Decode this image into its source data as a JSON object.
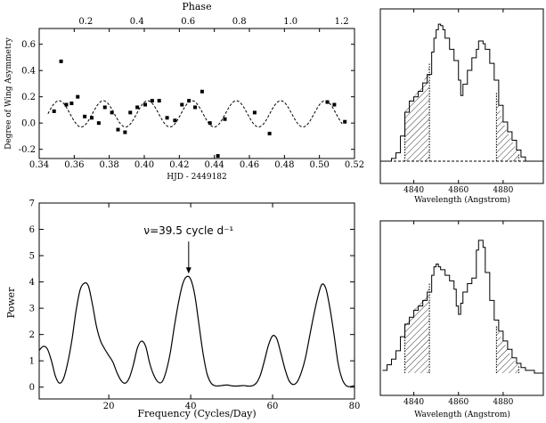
{
  "chart_data": [
    {
      "id": "asymmetry",
      "type": "scatter",
      "xlabel": "HJD - 2449182",
      "ylabel": "Degree of Wing Asymmetry",
      "top_xlabel": "Phase",
      "xlim": [
        0.34,
        0.52
      ],
      "ylim": [
        -0.27,
        0.72
      ],
      "phase_lim": [
        0.018,
        1.25
      ],
      "x_ticks": [
        "0.34",
        "0.36",
        "0.38",
        "0.40",
        "0.42",
        "0.44",
        "0.46",
        "0.48",
        "0.50",
        "0.52"
      ],
      "y_ticks": [
        "0.6",
        "0.4",
        "0.2",
        "0.0",
        "-0.2"
      ],
      "phase_ticks": [
        "0.2",
        "0.4",
        "0.6",
        "0.8",
        "1.0",
        "1.2"
      ],
      "points": [
        {
          "x": 0.3485,
          "y": 0.09
        },
        {
          "x": 0.3525,
          "y": 0.47
        },
        {
          "x": 0.3555,
          "y": 0.14
        },
        {
          "x": 0.3585,
          "y": 0.15
        },
        {
          "x": 0.362,
          "y": 0.2
        },
        {
          "x": 0.366,
          "y": 0.05
        },
        {
          "x": 0.37,
          "y": 0.04
        },
        {
          "x": 0.374,
          "y": 0.0
        },
        {
          "x": 0.3775,
          "y": 0.12
        },
        {
          "x": 0.3815,
          "y": 0.08
        },
        {
          "x": 0.385,
          "y": -0.05
        },
        {
          "x": 0.389,
          "y": -0.07
        },
        {
          "x": 0.392,
          "y": 0.08
        },
        {
          "x": 0.396,
          "y": 0.12
        },
        {
          "x": 0.4005,
          "y": 0.14
        },
        {
          "x": 0.4045,
          "y": 0.17
        },
        {
          "x": 0.4085,
          "y": 0.17
        },
        {
          "x": 0.413,
          "y": 0.04
        },
        {
          "x": 0.4175,
          "y": 0.02
        },
        {
          "x": 0.4215,
          "y": 0.14
        },
        {
          "x": 0.4255,
          "y": 0.17
        },
        {
          "x": 0.429,
          "y": 0.12
        },
        {
          "x": 0.433,
          "y": 0.24
        },
        {
          "x": 0.4375,
          "y": 0.0
        },
        {
          "x": 0.442,
          "y": -0.25
        },
        {
          "x": 0.446,
          "y": 0.03
        },
        {
          "x": 0.463,
          "y": 0.08
        },
        {
          "x": 0.4715,
          "y": -0.08
        },
        {
          "x": 0.5045,
          "y": 0.16
        },
        {
          "x": 0.5085,
          "y": 0.14
        },
        {
          "x": 0.5145,
          "y": 0.01
        }
      ],
      "fit": {
        "form": "sine",
        "offset": 0.07,
        "amplitude": 0.1,
        "period": 0.02532,
        "x_peak": 0.3513
      }
    },
    {
      "id": "periodogram",
      "type": "line",
      "xlabel": "Frequency (Cycles/Day)",
      "ylabel": "Power",
      "xlim": [
        3,
        80
      ],
      "ylim": [
        -0.45,
        7
      ],
      "x_ticks": [
        "20",
        "40",
        "60",
        "80"
      ],
      "y_ticks": [
        "0",
        "1",
        "2",
        "3",
        "4",
        "5",
        "6",
        "7"
      ],
      "annotation": {
        "text": "ν=39.5 cycle d⁻¹",
        "x": 39.5,
        "y": 4.25
      },
      "series": [
        {
          "name": "power",
          "x": [
            3,
            4,
            5,
            6,
            7,
            8,
            9,
            10,
            11,
            12,
            13,
            14,
            15,
            16,
            17,
            18,
            19,
            20,
            21,
            22,
            23,
            24,
            25,
            26,
            27,
            28,
            29,
            30,
            31,
            32,
            33,
            34,
            35,
            36,
            37,
            38,
            39,
            40,
            41,
            42,
            43,
            44,
            45,
            46,
            47,
            48,
            49,
            50,
            51,
            52,
            53,
            54,
            55,
            56,
            57,
            58,
            59,
            60,
            61,
            62,
            63,
            64,
            65,
            66,
            67,
            68,
            69,
            70,
            71,
            72,
            73,
            74,
            75,
            76,
            77,
            78,
            79,
            80
          ],
          "y": [
            1.4,
            1.55,
            1.45,
            1.0,
            0.4,
            0.15,
            0.35,
            0.95,
            1.8,
            2.9,
            3.7,
            3.95,
            3.85,
            3.15,
            2.3,
            1.75,
            1.45,
            1.2,
            0.95,
            0.55,
            0.25,
            0.15,
            0.35,
            0.85,
            1.5,
            1.75,
            1.55,
            0.9,
            0.45,
            0.2,
            0.2,
            0.6,
            1.3,
            2.3,
            3.2,
            3.9,
            4.2,
            4.1,
            3.5,
            2.4,
            1.3,
            0.5,
            0.15,
            0.05,
            0.05,
            0.07,
            0.08,
            0.05,
            0.04,
            0.05,
            0.06,
            0.04,
            0.05,
            0.15,
            0.45,
            1.0,
            1.6,
            1.95,
            1.85,
            1.3,
            0.7,
            0.25,
            0.1,
            0.2,
            0.55,
            1.1,
            1.9,
            2.7,
            3.4,
            3.9,
            3.75,
            3.0,
            2.0,
            0.9,
            0.3,
            0.05,
            0.02,
            0.05
          ]
        }
      ]
    },
    {
      "id": "profile-top",
      "type": "line",
      "xlabel": "Wavelength (Angstrom)",
      "xlim": [
        4825,
        4898
      ],
      "ylim": [
        0,
        1.0
      ],
      "x_ticks": [
        "4840",
        "4860",
        "4880"
      ],
      "hatched_bands": [
        [
          4836,
          4847
        ],
        [
          4877,
          4887
        ]
      ],
      "series": [
        {
          "name": "line profile",
          "x": [
            4826,
            4830,
            4832,
            4834,
            4836,
            4838,
            4840,
            4842,
            4844,
            4846,
            4848,
            4849,
            4850,
            4851,
            4852,
            4853,
            4854,
            4856,
            4858,
            4860,
            4861,
            4862,
            4864,
            4866,
            4868,
            4869,
            4870,
            4871,
            4872,
            4874,
            4876,
            4878,
            4880,
            4882,
            4884,
            4886,
            4888,
            4890,
            4892,
            4894,
            4896
          ],
          "y": [
            0.0,
            0.02,
            0.06,
            0.18,
            0.35,
            0.43,
            0.46,
            0.5,
            0.56,
            0.62,
            0.78,
            0.88,
            0.94,
            0.98,
            0.97,
            0.94,
            0.88,
            0.8,
            0.72,
            0.58,
            0.47,
            0.55,
            0.65,
            0.74,
            0.8,
            0.86,
            0.86,
            0.84,
            0.8,
            0.7,
            0.58,
            0.4,
            0.28,
            0.21,
            0.15,
            0.08,
            0.03,
            0.0,
            0.0,
            0.0,
            0.0
          ]
        }
      ]
    },
    {
      "id": "profile-bottom",
      "type": "line",
      "xlabel": "Wavelength (Angstrom)",
      "xlim": [
        4825,
        4898
      ],
      "ylim": [
        0,
        1.0
      ],
      "x_ticks": [
        "4840",
        "4860",
        "4880"
      ],
      "hatched_bands": [
        [
          4836,
          4847
        ],
        [
          4877,
          4887
        ]
      ],
      "series": [
        {
          "name": "line profile",
          "x": [
            4826,
            4828,
            4830,
            4832,
            4834,
            4836,
            4838,
            4840,
            4842,
            4844,
            4846,
            4848,
            4849,
            4850,
            4851,
            4852,
            4854,
            4856,
            4858,
            4859,
            4860,
            4861,
            4862,
            4864,
            4866,
            4868,
            4869,
            4870,
            4871,
            4872,
            4874,
            4876,
            4878,
            4880,
            4882,
            4884,
            4886,
            4888,
            4890,
            4892,
            4894
          ],
          "y": [
            0.02,
            0.06,
            0.1,
            0.16,
            0.26,
            0.35,
            0.4,
            0.45,
            0.48,
            0.52,
            0.58,
            0.7,
            0.76,
            0.78,
            0.76,
            0.74,
            0.7,
            0.66,
            0.6,
            0.48,
            0.42,
            0.5,
            0.58,
            0.64,
            0.68,
            0.88,
            0.95,
            0.95,
            0.9,
            0.72,
            0.52,
            0.38,
            0.3,
            0.23,
            0.17,
            0.11,
            0.07,
            0.04,
            0.02,
            0.02,
            0.0
          ]
        }
      ]
    }
  ]
}
